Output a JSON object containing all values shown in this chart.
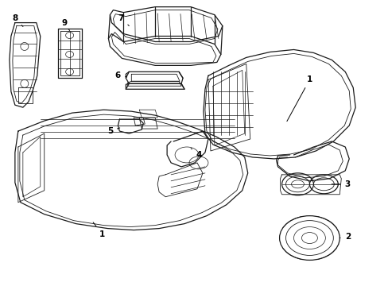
{
  "background_color": "#ffffff",
  "line_color": "#1a1a1a",
  "fig_width": 4.89,
  "fig_height": 3.6,
  "dpi": 100,
  "label_fontsize": 7.5,
  "lw_main": 0.9,
  "lw_inner": 0.6,
  "lw_detail": 0.5
}
